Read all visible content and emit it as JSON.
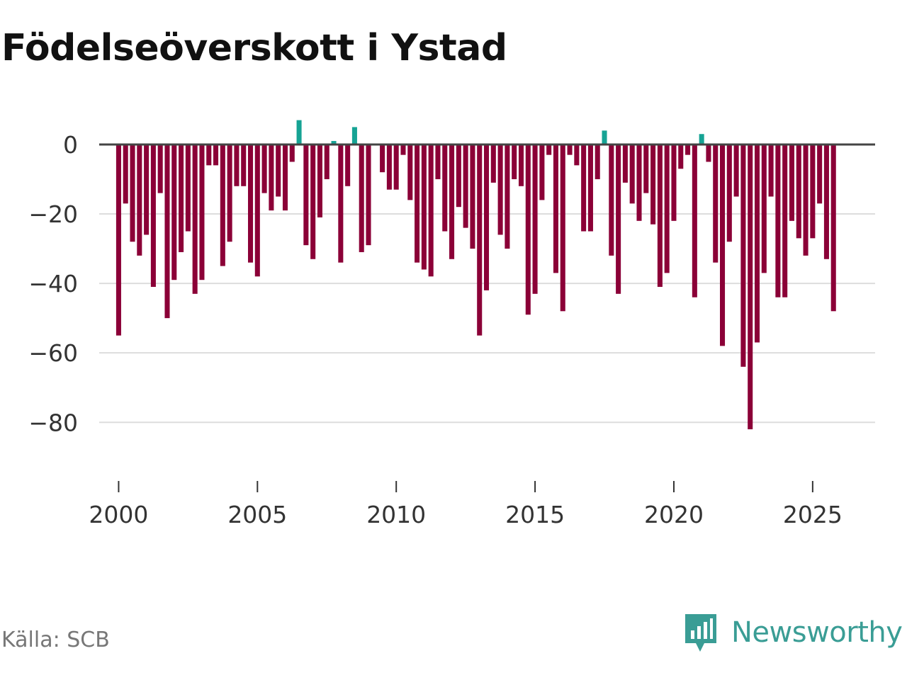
{
  "title": "Födelseöverskott i Ystad",
  "source": "Källa: SCB",
  "logo": {
    "text": "Newsworthy",
    "icon": "newsworthy-chart-bubble-icon"
  },
  "colors": {
    "negative": "#8b0037",
    "positive": "#16a394",
    "zero_line": "#444444",
    "grid": "#dddddd"
  },
  "chart_data": {
    "type": "bar",
    "title": "Födelseöverskott i Ystad",
    "xlabel": "",
    "ylabel": "",
    "frequency": "quarterly",
    "x_start": 2000.0,
    "x_step": 0.25,
    "xlim": [
      1999.3,
      2027.25
    ],
    "ylim": [
      -93,
      11
    ],
    "y_ticks": [
      0,
      -20,
      -40,
      -60,
      -80
    ],
    "y_tick_labels": [
      "0",
      "−20",
      "−40",
      "−60",
      "−80"
    ],
    "x_ticks": [
      2000,
      2005,
      2010,
      2015,
      2020,
      2025
    ],
    "x_tick_labels": [
      "2000",
      "2005",
      "2010",
      "2015",
      "2020",
      "2025"
    ],
    "values": [
      -55,
      -17,
      -28,
      -32,
      -26,
      -41,
      -14,
      -50,
      -39,
      -31,
      -25,
      -43,
      -39,
      -6,
      -6,
      -35,
      -28,
      -12,
      -12,
      -34,
      -38,
      -14,
      -19,
      -15,
      -19,
      -5,
      7,
      -29,
      -33,
      -21,
      -10,
      1,
      -34,
      -12,
      5,
      -31,
      -29,
      0,
      -8,
      -13,
      -13,
      -3,
      -16,
      -34,
      -36,
      -38,
      -10,
      -25,
      -33,
      -18,
      -24,
      -30,
      -55,
      -42,
      -11,
      -26,
      -30,
      -10,
      -12,
      -49,
      -43,
      -16,
      -3,
      -37,
      -48,
      -3,
      -6,
      -25,
      -25,
      -10,
      4,
      -32,
      -43,
      -11,
      -17,
      -22,
      -14,
      -23,
      -41,
      -37,
      -22,
      -7,
      -3,
      -44,
      3,
      -5,
      -34,
      -58,
      -28,
      -15,
      -64,
      -82,
      -57,
      -37,
      -15,
      -44,
      -44,
      -22,
      -27,
      -32,
      -27,
      -17,
      -33,
      -48
    ]
  }
}
